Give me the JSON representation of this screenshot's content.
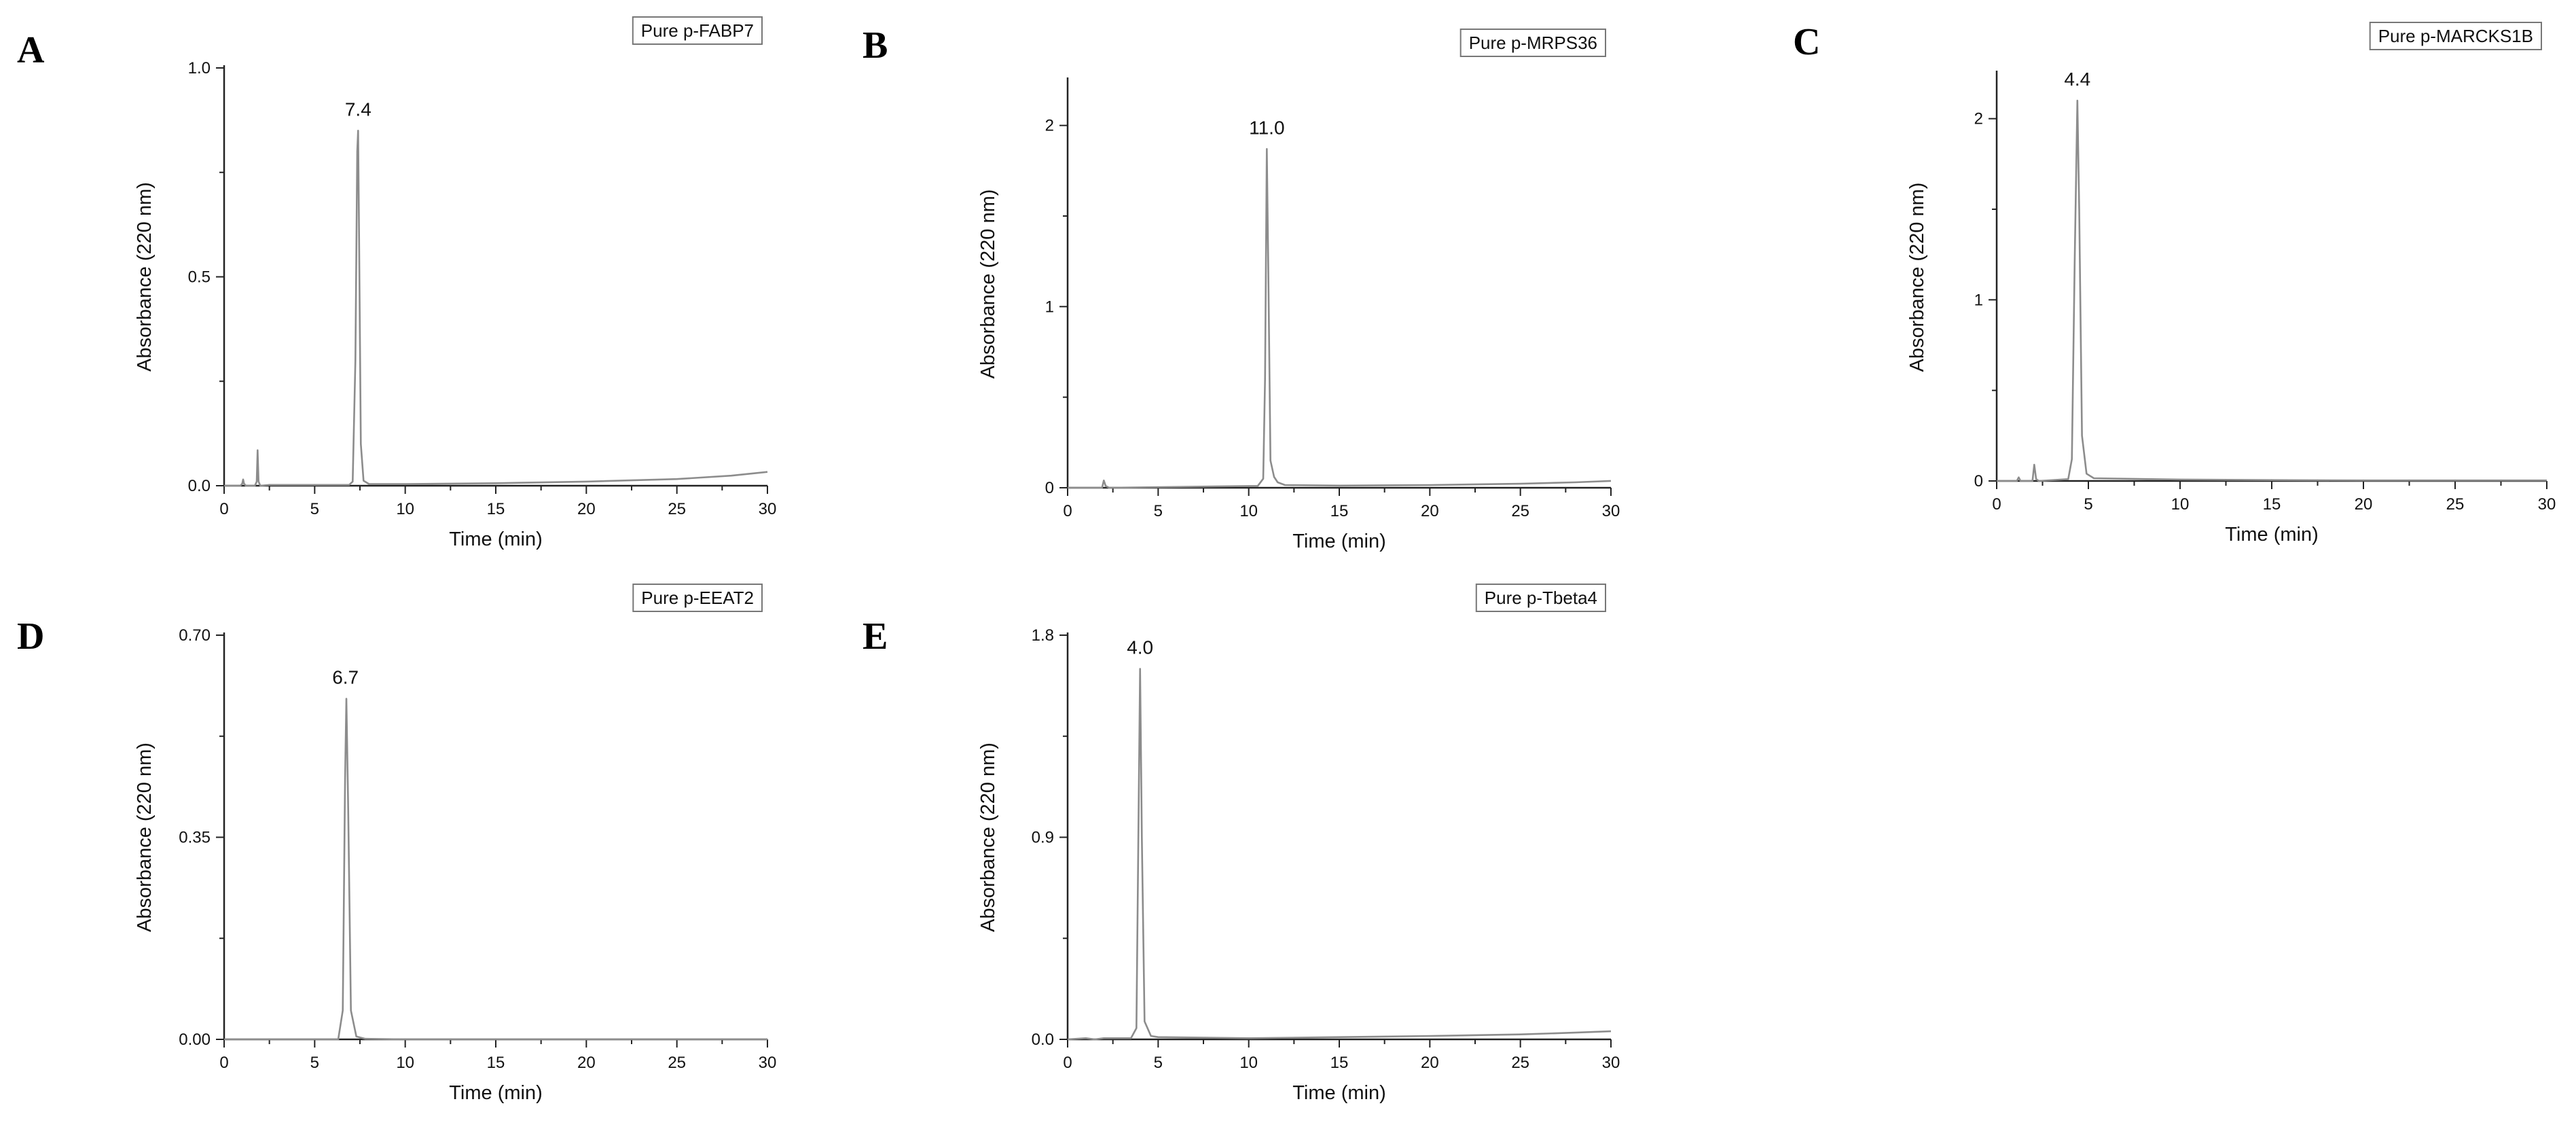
{
  "chart_data": [
    {
      "panel": "A",
      "type": "line",
      "legend": "Pure p-FABP7",
      "legend_position": "top-right",
      "xlabel": "Time (min)",
      "ylabel": "Absorbance (220 nm)",
      "xlim": [
        0,
        30
      ],
      "ylim": [
        0,
        1.0
      ],
      "xticks": [
        0,
        5,
        10,
        15,
        20,
        25,
        30
      ],
      "yticks": [
        0.0,
        0.5,
        1.0
      ],
      "ytick_labels": [
        "0.0",
        "0.5",
        "1.0"
      ],
      "grid": false,
      "peak": {
        "x": 7.4,
        "label": "7.4"
      },
      "series": [
        {
          "color": "#8c8c8c",
          "x": [
            0,
            0.9,
            1.0,
            1.05,
            1.1,
            1.2,
            1.7,
            1.8,
            1.85,
            1.9,
            2.0,
            2.5,
            6.9,
            7.1,
            7.25,
            7.35,
            7.4,
            7.45,
            7.55,
            7.7,
            8.0,
            10,
            15,
            20,
            25,
            28,
            30
          ],
          "y": [
            0,
            0,
            0.005,
            0.015,
            0.005,
            0.0,
            0.0,
            0.01,
            0.085,
            0.01,
            0.0,
            0.002,
            0.002,
            0.01,
            0.3,
            0.8,
            0.85,
            0.6,
            0.1,
            0.012,
            0.004,
            0.004,
            0.006,
            0.01,
            0.016,
            0.024,
            0.033
          ]
        }
      ]
    },
    {
      "panel": "B",
      "type": "line",
      "legend": "Pure p-MRPS36",
      "legend_position": "top-right",
      "xlabel": "Time (min)",
      "ylabel": "Absorbance (220 nm)",
      "xlim": [
        0,
        30
      ],
      "ylim": [
        0,
        2.25
      ],
      "xticks": [
        0,
        5,
        10,
        15,
        20,
        25,
        30
      ],
      "yticks": [
        0,
        1,
        2
      ],
      "ytick_labels": [
        "0",
        "1",
        "2"
      ],
      "grid": false,
      "peak": {
        "x": 11.0,
        "label": "11.0"
      },
      "series": [
        {
          "color": "#8c8c8c",
          "x": [
            0,
            1.9,
            2.0,
            2.1,
            2.3,
            10.5,
            10.8,
            10.9,
            11.0,
            11.08,
            11.2,
            11.4,
            11.6,
            12.0,
            15,
            20,
            25,
            28,
            30
          ],
          "y": [
            0,
            0,
            0.04,
            0.01,
            0.0,
            0.01,
            0.05,
            0.6,
            1.87,
            1.2,
            0.15,
            0.06,
            0.03,
            0.015,
            0.012,
            0.015,
            0.022,
            0.03,
            0.038
          ]
        }
      ]
    },
    {
      "panel": "C",
      "type": "line",
      "legend": "Pure p-MARCKS1B",
      "legend_position": "top-right",
      "xlabel": "Time (min)",
      "ylabel": "Absorbance (220 nm)",
      "xlim": [
        0,
        30
      ],
      "ylim": [
        0,
        2.25
      ],
      "xticks": [
        0,
        5,
        10,
        15,
        20,
        25,
        30
      ],
      "yticks": [
        0,
        1,
        2
      ],
      "ytick_labels": [
        "0",
        "1",
        "2"
      ],
      "grid": false,
      "peak": {
        "x": 4.4,
        "label": "4.4"
      },
      "series": [
        {
          "color": "#8c8c8c",
          "x": [
            0,
            1.1,
            1.2,
            1.3,
            1.5,
            1.95,
            2.05,
            2.15,
            2.3,
            3.9,
            4.1,
            4.25,
            4.4,
            4.5,
            4.65,
            4.9,
            5.3,
            10,
            15,
            17,
            20,
            25,
            30
          ],
          "y": [
            0,
            0,
            0.02,
            0.0,
            0.0,
            0.0,
            0.09,
            0.01,
            0.0,
            0.01,
            0.12,
            1.2,
            2.1,
            1.5,
            0.25,
            0.04,
            0.015,
            0.008,
            0.005,
            0.004,
            0.003,
            0.003,
            0.003
          ]
        }
      ]
    },
    {
      "panel": "D",
      "type": "line",
      "legend": "Pure p-EEAT2",
      "legend_position": "top-right",
      "xlabel": "Time (min)",
      "ylabel": "Absorbance (220 nm)",
      "xlim": [
        0,
        30
      ],
      "ylim": [
        0,
        0.7
      ],
      "xticks": [
        0,
        5,
        10,
        15,
        20,
        25,
        30
      ],
      "yticks": [
        0.0,
        0.35,
        0.7
      ],
      "ytick_labels": [
        "0.00",
        "0.35",
        "0.70"
      ],
      "grid": false,
      "peak": {
        "x": 6.7,
        "label": "6.7"
      },
      "series": [
        {
          "color": "#8c8c8c",
          "x": [
            0,
            6.3,
            6.55,
            6.68,
            6.75,
            6.85,
            7.0,
            7.3,
            7.8,
            10,
            15,
            20,
            25,
            30
          ],
          "y": [
            0,
            0.0,
            0.05,
            0.45,
            0.59,
            0.4,
            0.05,
            0.005,
            0.001,
            0.0,
            0.0,
            0.0,
            0.0,
            0.0
          ]
        }
      ]
    },
    {
      "panel": "E",
      "type": "line",
      "legend": "Pure p-Tbeta4",
      "legend_position": "top-right",
      "xlabel": "Time (min)",
      "ylabel": "Absorbance (220 nm)",
      "xlim": [
        0,
        30
      ],
      "ylim": [
        0,
        1.8
      ],
      "xticks": [
        0,
        5,
        10,
        15,
        20,
        25,
        30
      ],
      "yticks": [
        0.0,
        0.9,
        1.8
      ],
      "ytick_labels": [
        "0.0",
        "0.9",
        "1.8"
      ],
      "grid": false,
      "peak": {
        "x": 4.0,
        "label": "4.0"
      },
      "series": [
        {
          "color": "#8c8c8c",
          "x": [
            0,
            1.0,
            1.5,
            2.0,
            3.5,
            3.8,
            3.92,
            4.0,
            4.1,
            4.25,
            4.6,
            5.0,
            10,
            15,
            20,
            25,
            28,
            30
          ],
          "y": [
            0,
            0.005,
            0.0,
            0.005,
            0.005,
            0.05,
            1.0,
            1.65,
            0.9,
            0.08,
            0.015,
            0.01,
            0.005,
            0.01,
            0.015,
            0.022,
            0.03,
            0.036
          ]
        }
      ]
    }
  ]
}
